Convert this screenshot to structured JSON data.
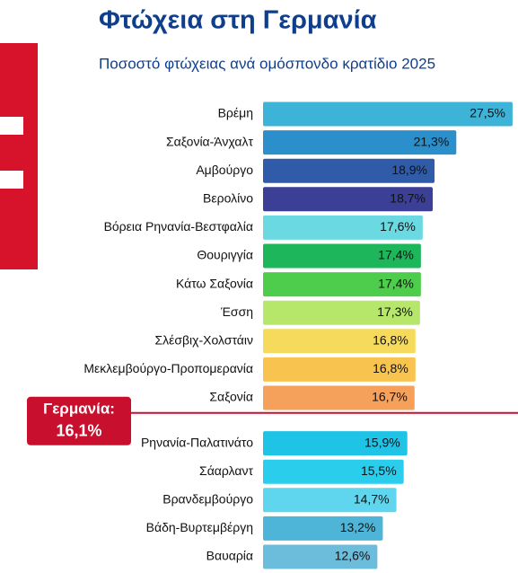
{
  "chart_data": {
    "type": "bar",
    "orientation": "horizontal",
    "title": "Φτώχεια στη Γερμανία",
    "subtitle": "Ποσοστό φτώχειας ανά ομόσπονδο κρατίδιο 2025",
    "categories": [
      "Βρέμη",
      "Σαξονία-Άνχαλτ",
      "Αμβούργο",
      "Βερολίνο",
      "Βόρεια Ρηνανία-Βεστφαλία",
      "Θουριγγία",
      "Κάτω Σαξονία",
      "Έσση",
      "Σλέσβιχ-Χολστάιν",
      "Μεκλεμβούργο-Προπομερανία",
      "Σαξονία",
      "Ρηνανία-Παλατινάτο",
      "Σάαρλαντ",
      "Βρανδεμβούργο",
      "Βάδη-Βυρτεμβέργη",
      "Βαυαρία"
    ],
    "values": [
      27.5,
      21.3,
      18.9,
      18.7,
      17.6,
      17.4,
      17.4,
      17.3,
      16.8,
      16.8,
      16.7,
      15.9,
      15.5,
      14.7,
      13.2,
      12.6
    ],
    "value_labels": [
      "27,5%",
      "21,3%",
      "18,9%",
      "18,7%",
      "17,6%",
      "17,4%",
      "17,4%",
      "17,3%",
      "16,8%",
      "16,8%",
      "16,7%",
      "15,9%",
      "15,5%",
      "14,7%",
      "13,2%",
      "12,6%"
    ],
    "colors": [
      "#3db3d8",
      "#2a8fca",
      "#2f5ba8",
      "#3b3f95",
      "#6ad9e2",
      "#1db65a",
      "#4dcd4b",
      "#b6e76b",
      "#f6da5c",
      "#f8c44f",
      "#f5a05b",
      "#1fc3e6",
      "#2bcdec",
      "#5fd6ee",
      "#4fb5d8",
      "#6cbddc"
    ],
    "xlim": [
      0,
      28
    ],
    "reference": {
      "name": "Γερμανία:",
      "value": 16.1,
      "label": "16,1%",
      "color": "#c8102e"
    }
  }
}
